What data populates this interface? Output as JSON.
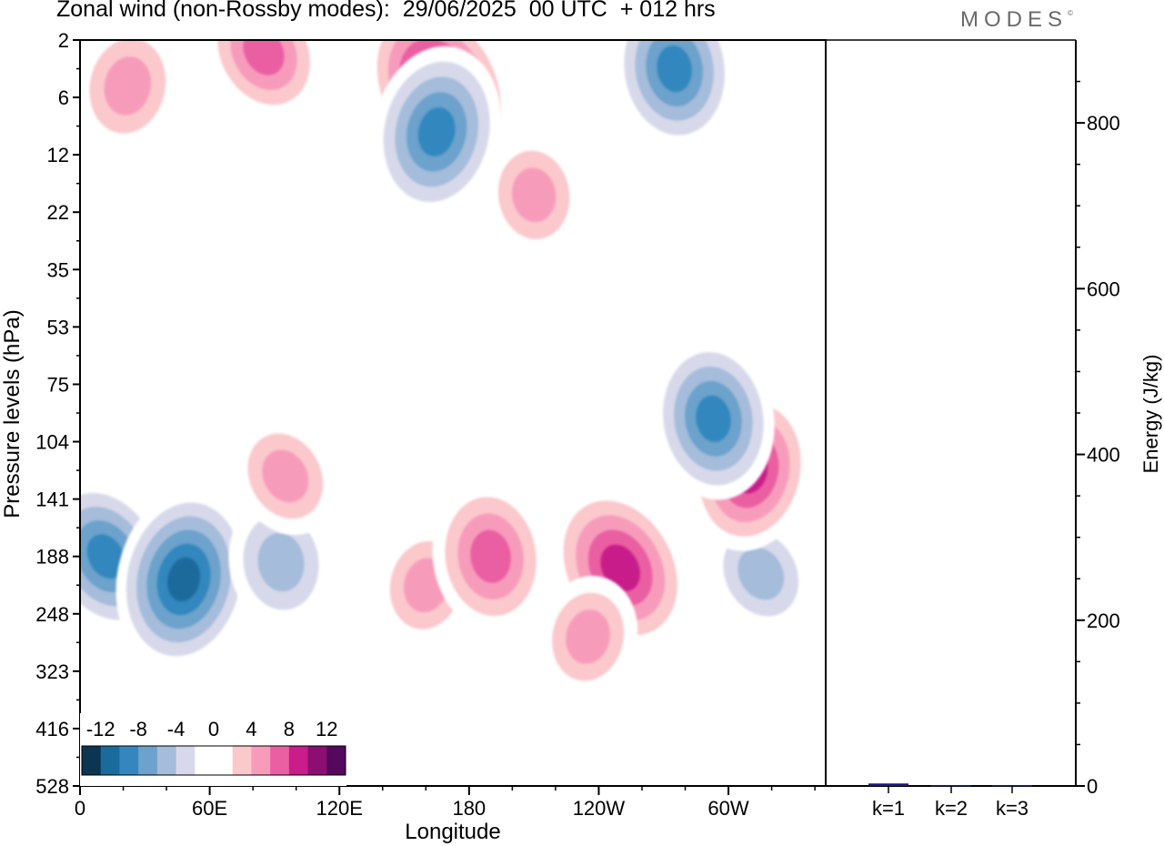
{
  "title": "Zonal wind (non-Rossby modes):  29/06/2025  00 UTC  + 012 hrs",
  "brand": "MODES",
  "brand_mark": "©",
  "colors": {
    "scale": [
      "#0b3550",
      "#1a6b9c",
      "#3387be",
      "#6ca2cb",
      "#a5bcdb",
      "#d7d9ea",
      "#ffffff",
      "#ffffff",
      "#fbc8cc",
      "#f79bbb",
      "#ea5fa2",
      "#c81d8a",
      "#8c0e72",
      "#56075e"
    ],
    "axis": "#000000",
    "energy_bar": "#1a1a7a"
  },
  "chart_data": [
    {
      "type": "heatmap",
      "name": "zonal-wind-contours",
      "xlabel": "Longitude",
      "ylabel": "Pressure levels (hPa)",
      "x_ticks": [
        "0",
        "60E",
        "120E",
        "180",
        "120W",
        "60W"
      ],
      "x_tick_values": [
        0,
        60,
        120,
        180,
        240,
        300
      ],
      "xlim": [
        0,
        345
      ],
      "y_ticks": [
        "2",
        "6",
        "12",
        "22",
        "35",
        "53",
        "75",
        "104",
        "141",
        "188",
        "248",
        "323",
        "416",
        "528"
      ],
      "colorbar_labels": [
        "-12",
        "-8",
        "-4",
        "0",
        "4",
        "8",
        "12"
      ],
      "levels": [
        -14,
        -12,
        -10,
        -8,
        -6,
        -4,
        -2,
        0,
        2,
        4,
        6,
        8,
        10,
        12,
        14
      ],
      "features": [
        {
          "lon": 12,
          "level": 9,
          "value": -9
        },
        {
          "lon": 48,
          "level": 9.4,
          "value": -11
        },
        {
          "lon": 93,
          "level": 9.1,
          "value": -6
        },
        {
          "lon": 315,
          "level": 9.3,
          "value": -5
        },
        {
          "lon": 160,
          "level": 9.5,
          "value": 5
        },
        {
          "lon": 190,
          "level": 9.0,
          "value": 8
        },
        {
          "lon": 250,
          "level": 9.2,
          "value": 10
        },
        {
          "lon": 310,
          "level": 7.5,
          "value": 9
        },
        {
          "lon": 293,
          "level": 6.6,
          "value": -9
        },
        {
          "lon": 166,
          "level": 0.8,
          "value": 11
        },
        {
          "lon": 165,
          "level": 1.6,
          "value": -10
        },
        {
          "lon": 275,
          "level": 0.5,
          "value": -9
        },
        {
          "lon": 85,
          "level": 0.2,
          "value": 7
        },
        {
          "lon": 22,
          "level": 0.8,
          "value": 6
        },
        {
          "lon": 210,
          "level": 2.7,
          "value": 5
        },
        {
          "lon": 95,
          "level": 7.6,
          "value": 5
        },
        {
          "lon": 235,
          "level": 10.4,
          "value": 5
        }
      ]
    },
    {
      "type": "bar",
      "name": "energy-bars",
      "categories": [
        "k=1",
        "k=2",
        "k=3"
      ],
      "values": [
        3,
        1,
        1
      ],
      "ylabel": "Energy (J/kg)",
      "ylim": [
        0,
        900
      ],
      "y_ticks": [
        "0",
        "200",
        "400",
        "600",
        "800"
      ],
      "y_tick_values": [
        0,
        200,
        400,
        600,
        800
      ]
    }
  ]
}
